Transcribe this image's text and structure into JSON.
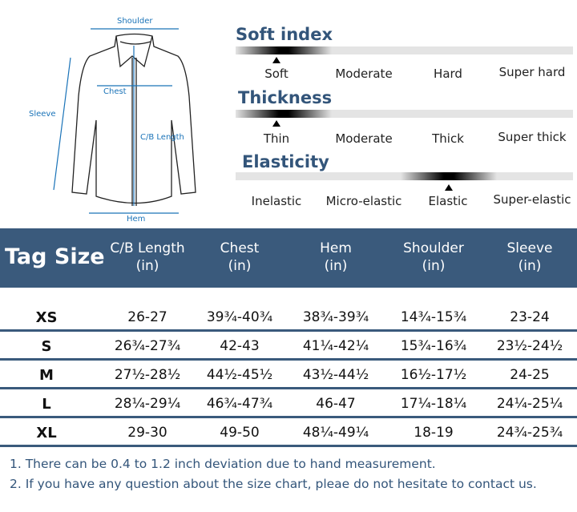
{
  "diagram": {
    "shoulder": "Shoulder",
    "chest": "Chest",
    "sleeve": "Sleeve",
    "cb_length": "C/B Length",
    "hem": "Hem"
  },
  "scales": [
    {
      "title": "Soft index",
      "options": [
        "Soft",
        "Moderate",
        "Hard",
        "Super hard"
      ],
      "selected_index": 0
    },
    {
      "title": "Thickness",
      "options": [
        "Thin",
        "Moderate",
        "Thick",
        "Super thick"
      ],
      "selected_index": 0
    },
    {
      "title": "Elasticity",
      "options": [
        "Inelastic",
        "Micro-elastic",
        "Elastic",
        "Super-elastic"
      ],
      "selected_index": 2
    }
  ],
  "table": {
    "tag_header": "Tag Size",
    "columns": [
      {
        "name": "C/B Length",
        "unit": "(in)"
      },
      {
        "name": "Chest",
        "unit": "(in)"
      },
      {
        "name": "Hem",
        "unit": "(in)"
      },
      {
        "name": "Shoulder",
        "unit": "(in)"
      },
      {
        "name": "Sleeve",
        "unit": "(in)"
      }
    ],
    "rows": [
      {
        "size": "XS",
        "values": [
          "26-27",
          "39¾-40¾",
          "38¾-39¾",
          "14¾-15¾",
          "23-24"
        ]
      },
      {
        "size": "S",
        "values": [
          "26¾-27¾",
          "42-43",
          "41¼-42¼",
          "15¾-16¾",
          "23½-24½"
        ]
      },
      {
        "size": "M",
        "values": [
          "27½-28½",
          "44½-45½",
          "43½-44½",
          "16½-17½",
          "24-25"
        ]
      },
      {
        "size": "L",
        "values": [
          "28¼-29¼",
          "46¾-47¾",
          "46-47",
          "17¼-18¼",
          "24¼-25¼"
        ]
      },
      {
        "size": "XL",
        "values": [
          "29-30",
          "49-50",
          "48¼-49¼",
          "18-19",
          "24¾-25¾"
        ]
      }
    ]
  },
  "notes": [
    "1. There can be 0.4 to 1.2 inch deviation due to hand measurement.",
    "2. If you have any question about the size chart, pleae do not hesitate to contact us."
  ],
  "colors": {
    "accent": "#3a5a7c",
    "diagram": "#1a73b8"
  }
}
